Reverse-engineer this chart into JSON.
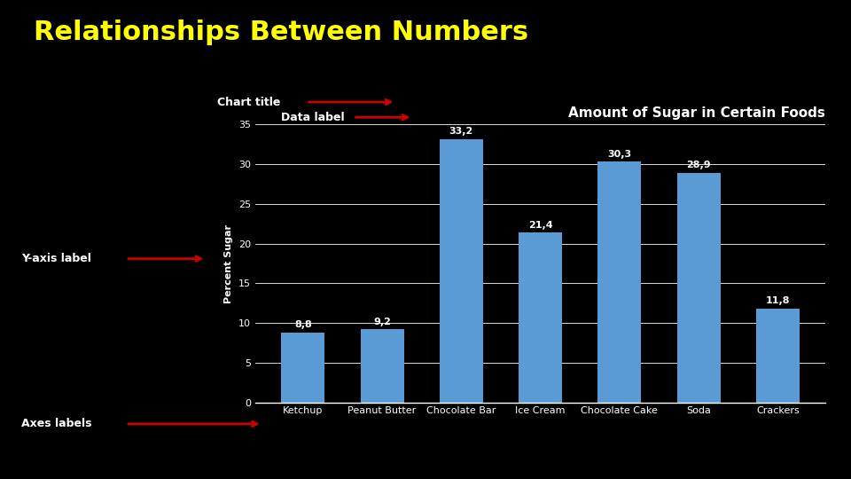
{
  "main_title": "Relationships Between Numbers",
  "chart_title": "Amount of Sugar in Certain Foods",
  "ylabel": "Percent Sugar",
  "categories": [
    "Ketchup",
    "Peanut Butter",
    "Chocolate Bar",
    "Ice Cream",
    "Chocolate Cake",
    "Soda",
    "Crackers"
  ],
  "values": [
    8.8,
    9.2,
    33.2,
    21.4,
    30.3,
    28.9,
    11.8
  ],
  "bar_color": "#5B9BD5",
  "background_color": "#000000",
  "text_color": "#ffffff",
  "main_title_color": "#ffff00",
  "grid_color": "#ffffff",
  "ylim": [
    0,
    35
  ],
  "yticks": [
    0,
    5,
    10,
    15,
    20,
    25,
    30,
    35
  ],
  "arrow_color": "#cc0000",
  "main_title_fontsize": 22,
  "chart_title_fontsize": 11,
  "bar_label_fontsize": 8,
  "axis_label_fontsize": 8,
  "tick_fontsize": 8,
  "annot_fontsize": 9
}
